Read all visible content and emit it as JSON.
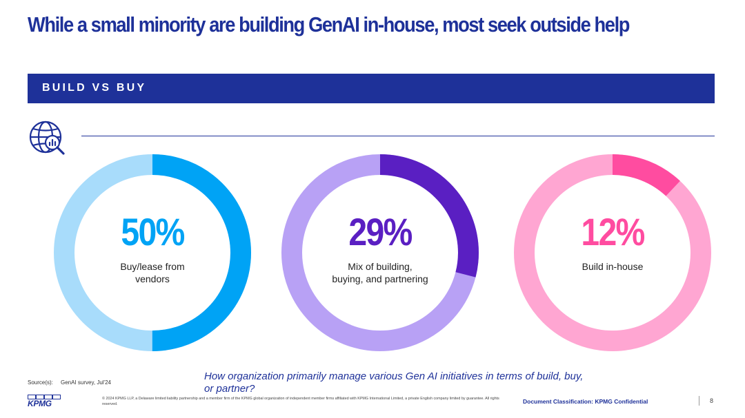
{
  "slide": {
    "title": "While a small minority are building GenAI in-house, most seek outside help",
    "section_label": "BUILD VS BUY"
  },
  "donuts": [
    {
      "percent": 50,
      "percent_label": "50%",
      "label": "Buy/lease from vendors",
      "color_main": "#00A3F5",
      "color_track": "#A8DCFB"
    },
    {
      "percent": 29,
      "percent_label": "29%",
      "label": "Mix of building, buying, and partnering",
      "color_main": "#5A1FC2",
      "color_track": "#B8A1F5"
    },
    {
      "percent": 12,
      "percent_label": "12%",
      "label": "Build in-house",
      "color_main": "#FF4CA0",
      "color_track": "#FFA6D2"
    }
  ],
  "footer": {
    "source": "Source(s):     GenAI survey, Jul'24",
    "question": "How organization primarily manage various Gen AI initiatives in terms of build, buy, or partner?",
    "legal": "© 2024 KPMG LLP, a Delaware limited liability partnership and a member firm of the KPMG global organization of independent member firms affiliated with KPMG International Limited, a private English company limited by guarantee. All rights reserved.",
    "classification": "Document Classification: KPMG Confidential",
    "page_number": "8",
    "logo_text": "KPMG"
  },
  "colors": {
    "brand_blue": "#1E3199"
  }
}
